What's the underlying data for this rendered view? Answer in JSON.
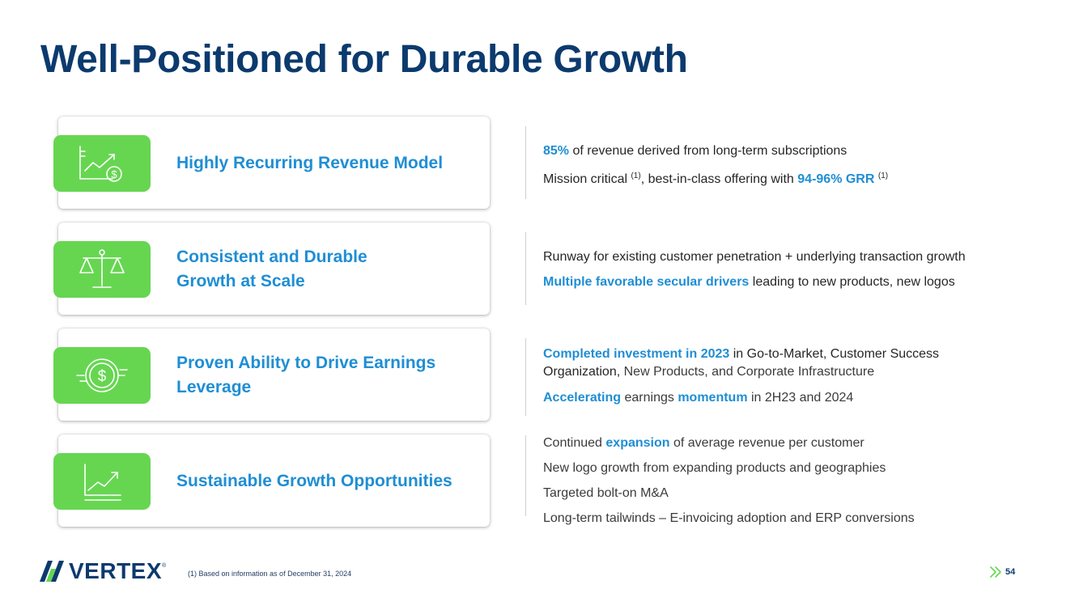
{
  "title": "Well-Positioned for Durable Growth",
  "colors": {
    "brand_navy": "#0b3a6e",
    "accent_blue": "#1f8ed4",
    "icon_green": "#66d651"
  },
  "cards": [
    {
      "title_lines": [
        "Highly Recurring Revenue Model"
      ],
      "icon": "chart-dollar-icon"
    },
    {
      "title_lines": [
        "Consistent and Durable",
        "Growth at Scale"
      ],
      "icon": "balance-scale-icon"
    },
    {
      "title_lines": [
        "Proven Ability to Drive Earnings",
        "Leverage"
      ],
      "icon": "dollar-coin-icon"
    },
    {
      "title_lines": [
        "Sustainable Growth Opportunities"
      ],
      "icon": "trend-up-icon"
    }
  ],
  "details": {
    "c1": {
      "l1_hl": "85%",
      "l1_rest": " of revenue derived from long-term subscriptions",
      "l2_a": "Mission critical ",
      "l2_sup1": "(1)",
      "l2_b": ", best-in-class offering with ",
      "l2_hl": "94-96% GRR",
      "l2_sup2": "(1)"
    },
    "c2": {
      "l1": "Runway for existing customer penetration + underlying transaction growth",
      "l2_hl": "Multiple favorable secular drivers",
      "l2_rest": " leading to new products, new logos"
    },
    "c3": {
      "l1_hl": "Completed investment in 2023",
      "l1_rest": " in Go-to-Market, Customer Success",
      "l2_a": "Organization,",
      "l2_b": " New Products, and Corporate Infrastructure",
      "l3_hl1": "Accelerating",
      "l3_mid": " earnings ",
      "l3_hl2": "momentum",
      "l3_rest": " in 2H23 and 2024"
    },
    "c4": {
      "l1_a": "Continued ",
      "l1_hl": "expansion",
      "l1_rest": " of average revenue per customer",
      "l2": "New logo growth from expanding products and geographies",
      "l3": "Targeted bolt-on M&A",
      "l4": "Long-term tailwinds – E-invoicing adoption and ERP conversions"
    }
  },
  "footer": {
    "logo_text": "VERTEX",
    "logo_tm": "®",
    "note": "(1) Based on information as of December 31, 2024",
    "page_number": "54"
  }
}
